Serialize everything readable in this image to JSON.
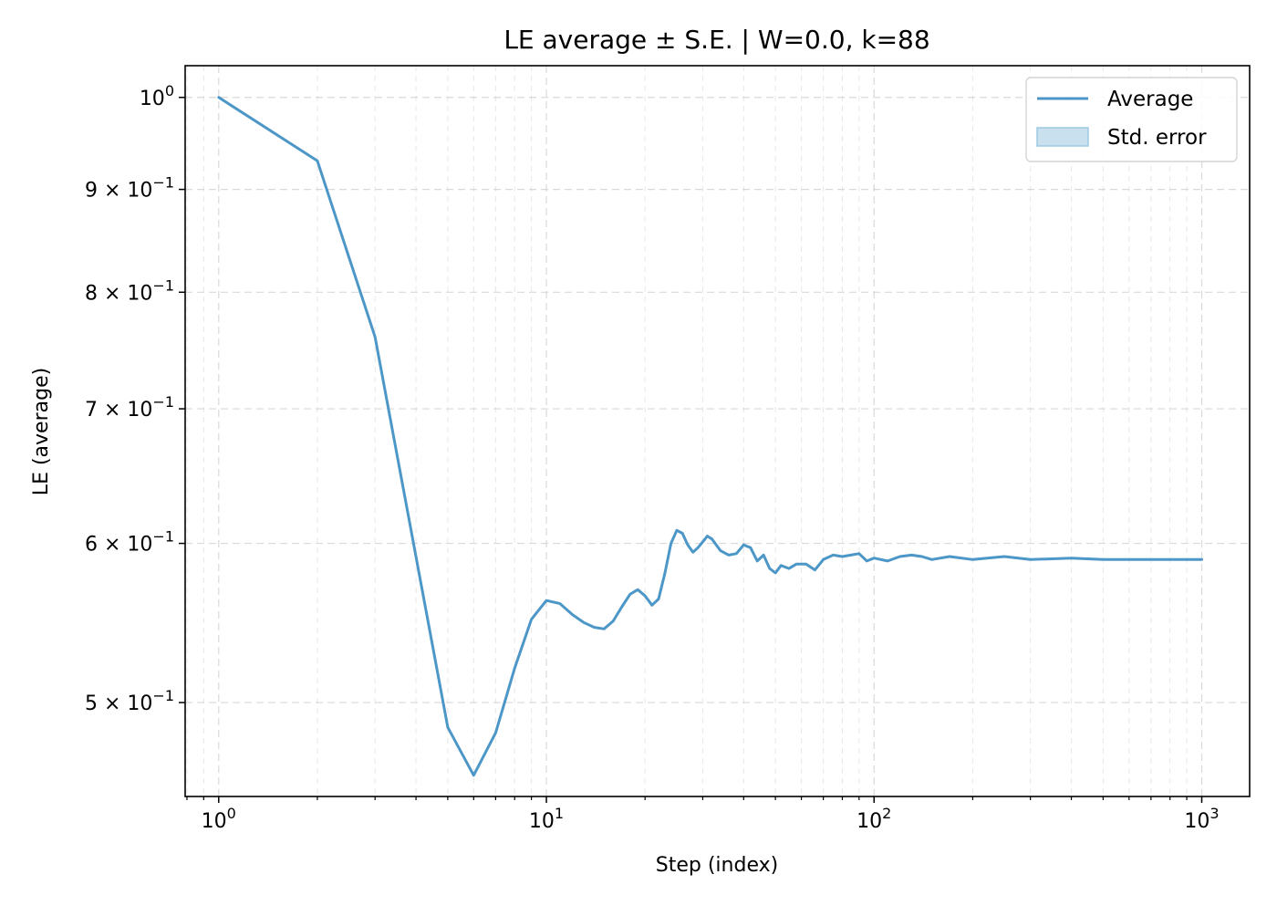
{
  "chart_data": {
    "type": "line",
    "title": "LE average ± S.E. | W=0.0, k=88",
    "xlabel": "Step (index)",
    "ylabel": "LE (average)",
    "xscale": "log",
    "yscale": "log",
    "xlim": [
      0.79,
      1400
    ],
    "ylim": [
      0.449,
      1.037
    ],
    "grid": true,
    "legend_position": "top-right",
    "x_ticks": [
      {
        "value": 1,
        "base": "10",
        "exp": "0"
      },
      {
        "value": 10,
        "base": "10",
        "exp": "1"
      },
      {
        "value": 100,
        "base": "10",
        "exp": "2"
      },
      {
        "value": 1000,
        "base": "10",
        "exp": "3"
      }
    ],
    "y_ticks": [
      {
        "value": 1.0,
        "mantissa": "",
        "base": "10",
        "exp": "0"
      },
      {
        "value": 0.9,
        "mantissa": "9 × ",
        "base": "10",
        "exp": "−1"
      },
      {
        "value": 0.8,
        "mantissa": "8 × ",
        "base": "10",
        "exp": "−1"
      },
      {
        "value": 0.7,
        "mantissa": "7 × ",
        "base": "10",
        "exp": "−1"
      },
      {
        "value": 0.6,
        "mantissa": "6 × ",
        "base": "10",
        "exp": "−1"
      },
      {
        "value": 0.5,
        "mantissa": "5 × ",
        "base": "10",
        "exp": "−1"
      }
    ],
    "legend": {
      "line_label": "Average",
      "band_label": "Std. error"
    },
    "colors": {
      "line": "#4c97c7",
      "band": "#c9e0ef",
      "band_edge": "#9ec8e4"
    },
    "series": [
      {
        "name": "Average",
        "x": [
          1,
          2,
          3,
          5,
          6,
          7,
          8,
          9,
          10,
          11,
          12,
          13,
          14,
          15,
          16,
          17,
          18,
          19,
          20,
          21,
          22,
          23,
          24,
          25,
          26,
          27,
          28,
          29,
          30,
          31,
          32,
          34,
          36,
          38,
          40,
          42,
          44,
          46,
          48,
          50,
          52,
          55,
          58,
          62,
          66,
          70,
          75,
          80,
          85,
          90,
          95,
          100,
          110,
          120,
          130,
          140,
          150,
          170,
          200,
          250,
          300,
          400,
          500,
          700,
          1000
        ],
        "y": [
          1.0,
          0.93,
          0.76,
          0.486,
          0.46,
          0.483,
          0.52,
          0.55,
          0.562,
          0.56,
          0.553,
          0.548,
          0.545,
          0.544,
          0.549,
          0.558,
          0.566,
          0.569,
          0.565,
          0.559,
          0.563,
          0.58,
          0.6,
          0.609,
          0.607,
          0.599,
          0.594,
          0.597,
          0.601,
          0.605,
          0.603,
          0.595,
          0.592,
          0.593,
          0.599,
          0.597,
          0.588,
          0.592,
          0.583,
          0.58,
          0.585,
          0.583,
          0.586,
          0.586,
          0.582,
          0.589,
          0.592,
          0.591,
          0.592,
          0.593,
          0.588,
          0.59,
          0.588,
          0.591,
          0.592,
          0.591,
          0.589,
          0.591,
          0.589,
          0.591,
          0.589,
          0.59,
          0.589,
          0.589,
          0.589
        ]
      }
    ]
  }
}
